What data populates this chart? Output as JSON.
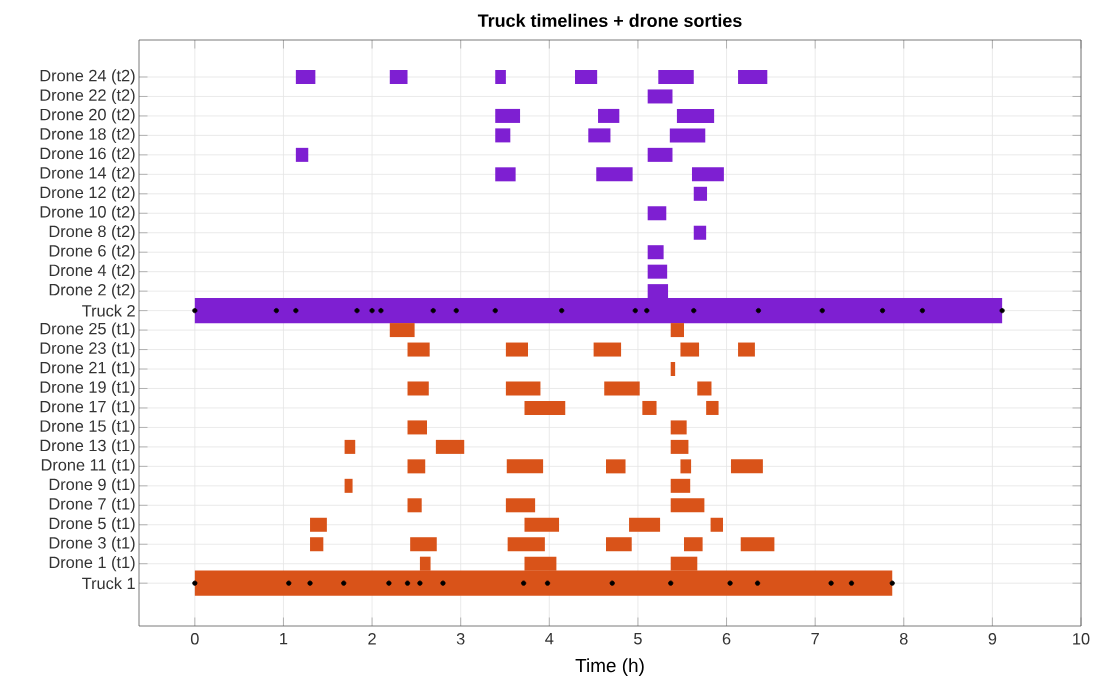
{
  "chart_data": {
    "type": "bar",
    "orientation": "horizontal",
    "title": "Truck timelines + drone sorties",
    "xlabel": "Time (h)",
    "categories": [
      "Drone 24 (t2)",
      "Drone 22 (t2)",
      "Drone 20 (t2)",
      "Drone 18 (t2)",
      "Drone 16 (t2)",
      "Drone 14 (t2)",
      "Drone 12 (t2)",
      "Drone 10 (t2)",
      "Drone 8 (t2)",
      "Drone 6 (t2)",
      "Drone 4 (t2)",
      "Drone 2 (t2)",
      "Truck 2",
      "Drone 25 (t1)",
      "Drone 23 (t1)",
      "Drone 21 (t1)",
      "Drone 19 (t1)",
      "Drone 17 (t1)",
      "Drone 15 (t1)",
      "Drone 13 (t1)",
      "Drone 11 (t1)",
      "Drone 9 (t1)",
      "Drone 7 (t1)",
      "Drone 5 (t1)",
      "Drone 3 (t1)",
      "Drone 1 (t1)",
      "Truck 1"
    ],
    "xlim": [
      -0.63,
      10
    ],
    "xticks": [
      0,
      1,
      2,
      3,
      4,
      5,
      6,
      7,
      8,
      9,
      10
    ],
    "grid": true,
    "series": [
      {
        "base": [
          1.14,
          5.11,
          3.39,
          3.39,
          1.14,
          3.39,
          5.63,
          5.11,
          5.63,
          5.11,
          5.11,
          5.11,
          0,
          2.2,
          2.4,
          5.37,
          2.4,
          3.72,
          2.4,
          1.69,
          2.4,
          1.69,
          2.4,
          1.3,
          1.3,
          2.54,
          0
        ],
        "values": [
          0.22,
          0.28,
          0.28,
          0.17,
          0.14,
          0.23,
          0.15,
          0.21,
          0.14,
          0.18,
          0.22,
          0.23,
          9.11,
          0.28,
          0.25,
          0.05,
          0.24,
          0.46,
          0.22,
          0.12,
          0.2,
          0.09,
          0.16,
          0.19,
          0.15,
          0.12,
          7.87
        ],
        "colors": [
          "#7e1fd2",
          "#7e1fd2",
          "#7e1fd2",
          "#7e1fd2",
          "#7e1fd2",
          "#7e1fd2",
          "#7e1fd2",
          "#7e1fd2",
          "#7e1fd2",
          "#7e1fd2",
          "#7e1fd2",
          "#7e1fd2",
          "#7e1fd2",
          "#d95319",
          "#d95319",
          "#d95319",
          "#d95319",
          "#d95319",
          "#d95319",
          "#d95319",
          "#d95319",
          "#d95319",
          "#d95319",
          "#d95319",
          "#d95319",
          "#d95319",
          "#d95319"
        ]
      },
      {
        "base": [
          2.2,
          null,
          4.55,
          4.44,
          5.11,
          4.53,
          null,
          null,
          null,
          null,
          null,
          null,
          null,
          5.37,
          3.51,
          null,
          3.51,
          5.05,
          5.37,
          2.72,
          3.52,
          5.37,
          3.51,
          3.72,
          2.43,
          3.72,
          null
        ],
        "values": [
          0.2,
          null,
          0.24,
          0.25,
          0.28,
          0.41,
          null,
          null,
          null,
          null,
          null,
          null,
          null,
          0.15,
          0.25,
          null,
          0.39,
          0.16,
          0.18,
          0.32,
          0.41,
          0.22,
          0.33,
          0.39,
          0.3,
          0.36,
          null
        ],
        "colors": [
          "#7e1fd2",
          "#7e1fd2",
          "#7e1fd2",
          "#7e1fd2",
          "#7e1fd2",
          "#7e1fd2",
          "#7e1fd2",
          "#7e1fd2",
          "#7e1fd2",
          "#7e1fd2",
          "#7e1fd2",
          "#7e1fd2",
          "#7e1fd2",
          "#d95319",
          "#d95319",
          "#d95319",
          "#d95319",
          "#d95319",
          "#d95319",
          "#d95319",
          "#d95319",
          "#d95319",
          "#d95319",
          "#d95319",
          "#d95319",
          "#d95319",
          "#d95319"
        ]
      },
      {
        "base": [
          3.39,
          null,
          5.44,
          5.36,
          null,
          5.61,
          null,
          null,
          null,
          null,
          null,
          null,
          null,
          null,
          4.5,
          null,
          4.62,
          5.77,
          null,
          5.37,
          4.64,
          null,
          5.37,
          4.9,
          3.53,
          5.37,
          null
        ],
        "values": [
          0.12,
          null,
          0.42,
          0.4,
          null,
          0.36,
          null,
          null,
          null,
          null,
          null,
          null,
          null,
          null,
          0.31,
          null,
          0.4,
          0.14,
          null,
          0.2,
          0.22,
          null,
          0.38,
          0.35,
          0.42,
          0.3,
          null
        ],
        "colors": [
          "#7e1fd2",
          "#7e1fd2",
          "#7e1fd2",
          "#7e1fd2",
          "#7e1fd2",
          "#7e1fd2",
          "#7e1fd2",
          "#7e1fd2",
          "#7e1fd2",
          "#7e1fd2",
          "#7e1fd2",
          "#7e1fd2",
          "#7e1fd2",
          "#d95319",
          "#d95319",
          "#d95319",
          "#d95319",
          "#d95319",
          "#d95319",
          "#d95319",
          "#d95319",
          "#d95319",
          "#d95319",
          "#d95319",
          "#d95319",
          "#d95319",
          "#d95319"
        ]
      },
      {
        "base": [
          4.29,
          null,
          null,
          null,
          null,
          null,
          null,
          null,
          null,
          null,
          null,
          null,
          null,
          null,
          5.48,
          null,
          5.67,
          null,
          null,
          null,
          5.48,
          null,
          null,
          5.82,
          4.64,
          null,
          null
        ],
        "values": [
          0.25,
          null,
          null,
          null,
          null,
          null,
          null,
          null,
          null,
          null,
          null,
          null,
          null,
          null,
          0.21,
          null,
          0.16,
          null,
          null,
          null,
          0.12,
          null,
          null,
          0.14,
          0.29,
          null,
          null
        ],
        "colors": [
          "#7e1fd2",
          "#7e1fd2",
          "#7e1fd2",
          "#7e1fd2",
          "#7e1fd2",
          "#7e1fd2",
          "#7e1fd2",
          "#7e1fd2",
          "#7e1fd2",
          "#7e1fd2",
          "#7e1fd2",
          "#7e1fd2",
          "#7e1fd2",
          "#d95319",
          "#d95319",
          "#d95319",
          "#d95319",
          "#d95319",
          "#d95319",
          "#d95319",
          "#d95319",
          "#d95319",
          "#d95319",
          "#d95319",
          "#d95319",
          "#d95319",
          "#d95319"
        ]
      },
      {
        "base": [
          5.23,
          null,
          null,
          null,
          null,
          null,
          null,
          null,
          null,
          null,
          null,
          null,
          null,
          null,
          6.13,
          null,
          null,
          null,
          null,
          null,
          6.05,
          null,
          null,
          null,
          5.52,
          null,
          null
        ],
        "values": [
          0.4,
          null,
          null,
          null,
          null,
          null,
          null,
          null,
          null,
          null,
          null,
          null,
          null,
          null,
          0.19,
          null,
          null,
          null,
          null,
          null,
          0.36,
          null,
          null,
          null,
          0.21,
          null,
          null
        ],
        "colors": [
          "#7e1fd2",
          "#7e1fd2",
          "#7e1fd2",
          "#7e1fd2",
          "#7e1fd2",
          "#7e1fd2",
          "#7e1fd2",
          "#7e1fd2",
          "#7e1fd2",
          "#7e1fd2",
          "#7e1fd2",
          "#7e1fd2",
          "#7e1fd2",
          "#d95319",
          "#d95319",
          "#d95319",
          "#d95319",
          "#d95319",
          "#d95319",
          "#d95319",
          "#d95319",
          "#d95319",
          "#d95319",
          "#d95319",
          "#d95319",
          "#d95319",
          "#d95319"
        ]
      },
      {
        "base": [
          6.13,
          null,
          null,
          null,
          null,
          null,
          null,
          null,
          null,
          null,
          null,
          null,
          null,
          null,
          null,
          null,
          null,
          null,
          null,
          null,
          null,
          null,
          null,
          null,
          6.16,
          null,
          null
        ],
        "values": [
          0.33,
          null,
          null,
          null,
          null,
          null,
          null,
          null,
          null,
          null,
          null,
          null,
          null,
          null,
          null,
          null,
          null,
          null,
          null,
          null,
          null,
          null,
          null,
          null,
          0.38,
          null,
          null
        ],
        "colors": [
          "#7e1fd2",
          "#7e1fd2",
          "#7e1fd2",
          "#7e1fd2",
          "#7e1fd2",
          "#7e1fd2",
          "#7e1fd2",
          "#7e1fd2",
          "#7e1fd2",
          "#7e1fd2",
          "#7e1fd2",
          "#7e1fd2",
          "#7e1fd2",
          "#d95319",
          "#d95319",
          "#d95319",
          "#d95319",
          "#d95319",
          "#d95319",
          "#d95319",
          "#d95319",
          "#d95319",
          "#d95319",
          "#d95319",
          "#d95319",
          "#d95319",
          "#d95319"
        ]
      },
      {
        "type": "scatter",
        "marker": "circle",
        "color": "#000000",
        "x": [
          "Truck 2",
          "Truck 2",
          "Truck 2",
          "Truck 2",
          "Truck 2",
          "Truck 2",
          "Truck 2",
          "Truck 2",
          "Truck 2",
          "Truck 2",
          "Truck 2",
          "Truck 2",
          "Truck 2",
          "Truck 2",
          "Truck 2",
          "Truck 2",
          "Truck 2",
          "Truck 2"
        ],
        "values": [
          0,
          0.92,
          1.14,
          1.83,
          2.0,
          2.1,
          2.69,
          2.95,
          3.39,
          4.14,
          4.97,
          5.1,
          5.63,
          6.36,
          7.08,
          7.76,
          8.21,
          9.11
        ]
      },
      {
        "type": "scatter",
        "marker": "circle",
        "color": "#000000",
        "x": [
          "Truck 1",
          "Truck 1",
          "Truck 1",
          "Truck 1",
          "Truck 1",
          "Truck 1",
          "Truck 1",
          "Truck 1",
          "Truck 1",
          "Truck 1",
          "Truck 1",
          "Truck 1",
          "Truck 1",
          "Truck 1",
          "Truck 1",
          "Truck 1",
          "Truck 1"
        ],
        "values": [
          0,
          1.06,
          1.3,
          1.68,
          2.19,
          2.4,
          2.54,
          2.8,
          3.71,
          3.98,
          4.71,
          5.37,
          6.04,
          6.35,
          7.18,
          7.41,
          7.87
        ]
      }
    ]
  }
}
